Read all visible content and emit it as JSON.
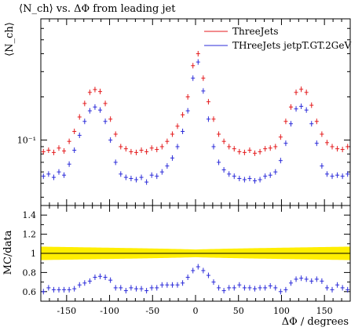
{
  "chart_data": [
    {
      "type": "scatter",
      "title": "⟨N_ch⟩ vs. ΔΦ from leading jet",
      "ylabel": "⟨N_ch⟩",
      "yscale": "log",
      "ylim": [
        0.035,
        0.7
      ],
      "xlim": [
        -180,
        180
      ],
      "ytick_label": "10⁻¹",
      "legend_position": "top-right",
      "series": [
        {
          "name": "ThreeJets",
          "color": "#e41a1c",
          "x": [
            -177,
            -171,
            -165,
            -159,
            -153,
            -147,
            -141,
            -135,
            -129,
            -123,
            -117,
            -111,
            -105,
            -99,
            -93,
            -87,
            -81,
            -75,
            -69,
            -63,
            -57,
            -51,
            -45,
            -39,
            -33,
            -27,
            -21,
            -15,
            -9,
            -3,
            3,
            9,
            15,
            21,
            27,
            33,
            39,
            45,
            51,
            57,
            63,
            69,
            75,
            81,
            87,
            93,
            99,
            105,
            111,
            117,
            123,
            129,
            135,
            141,
            147,
            153,
            159,
            165,
            171,
            177
          ],
          "y": [
            0.083,
            0.085,
            0.082,
            0.088,
            0.084,
            0.098,
            0.115,
            0.145,
            0.18,
            0.215,
            0.225,
            0.218,
            0.18,
            0.14,
            0.11,
            0.09,
            0.087,
            0.083,
            0.082,
            0.085,
            0.083,
            0.088,
            0.086,
            0.09,
            0.098,
            0.11,
            0.125,
            0.15,
            0.2,
            0.33,
            0.4,
            0.27,
            0.185,
            0.14,
            0.11,
            0.098,
            0.09,
            0.087,
            0.083,
            0.082,
            0.085,
            0.081,
            0.083,
            0.087,
            0.088,
            0.09,
            0.105,
            0.135,
            0.17,
            0.215,
            0.226,
            0.215,
            0.175,
            0.135,
            0.11,
            0.096,
            0.09,
            0.087,
            0.086,
            0.09
          ]
        },
        {
          "name": "THreeJets jetpT.GT.2GeV",
          "color": "#2b2bd9",
          "x": [
            -177,
            -171,
            -165,
            -159,
            -153,
            -147,
            -141,
            -135,
            -129,
            -123,
            -117,
            -111,
            -105,
            -99,
            -93,
            -87,
            -81,
            -75,
            -69,
            -63,
            -57,
            -51,
            -45,
            -39,
            -33,
            -27,
            -21,
            -15,
            -9,
            -3,
            3,
            9,
            15,
            21,
            27,
            33,
            39,
            45,
            51,
            57,
            63,
            69,
            75,
            81,
            87,
            93,
            99,
            105,
            111,
            117,
            123,
            129,
            135,
            141,
            147,
            153,
            159,
            165,
            171,
            177
          ],
          "y": [
            0.056,
            0.058,
            0.055,
            0.06,
            0.057,
            0.068,
            0.085,
            0.108,
            0.135,
            0.16,
            0.17,
            0.162,
            0.135,
            0.1,
            0.07,
            0.058,
            0.055,
            0.054,
            0.053,
            0.055,
            0.051,
            0.057,
            0.056,
            0.06,
            0.066,
            0.075,
            0.09,
            0.115,
            0.16,
            0.27,
            0.35,
            0.22,
            0.14,
            0.09,
            0.07,
            0.062,
            0.058,
            0.056,
            0.054,
            0.053,
            0.054,
            0.052,
            0.053,
            0.056,
            0.057,
            0.06,
            0.072,
            0.095,
            0.13,
            0.165,
            0.172,
            0.162,
            0.13,
            0.095,
            0.066,
            0.058,
            0.056,
            0.057,
            0.056,
            0.058
          ]
        }
      ]
    },
    {
      "type": "scatter",
      "ylabel": "MC/data",
      "xlabel": "ΔΦ / degrees",
      "xlim": [
        -180,
        180
      ],
      "ylim": [
        0.5,
        1.5
      ],
      "xticks": [
        -150,
        -100,
        -50,
        0,
        50,
        100,
        150
      ],
      "yticks": [
        0.6,
        0.8,
        1.0,
        1.2,
        1.4
      ],
      "xtick_labels": [
        "-150",
        "-100",
        "-50",
        "0",
        "50",
        "100",
        "150"
      ],
      "ytick_labels": [
        "0.6",
        "0.8",
        "1",
        "1.2",
        "1.4"
      ],
      "band": {
        "center": 1.0,
        "halfwidth_edge": 0.07,
        "halfwidth_center": 0.04,
        "color": "#ffee00"
      },
      "series": [
        {
          "name": "THreeJets jetpT.GT.2GeV",
          "color": "#2b2bd9",
          "x": [
            -177,
            -171,
            -165,
            -159,
            -153,
            -147,
            -141,
            -135,
            -129,
            -123,
            -117,
            -111,
            -105,
            -99,
            -93,
            -87,
            -81,
            -75,
            -69,
            -63,
            -57,
            -51,
            -45,
            -39,
            -33,
            -27,
            -21,
            -15,
            -9,
            -3,
            3,
            9,
            15,
            21,
            27,
            33,
            39,
            45,
            51,
            57,
            63,
            69,
            75,
            81,
            87,
            93,
            99,
            105,
            111,
            117,
            123,
            129,
            135,
            141,
            147,
            153,
            159,
            165,
            171,
            177
          ],
          "y": [
            0.6,
            0.64,
            0.62,
            0.62,
            0.62,
            0.62,
            0.63,
            0.67,
            0.69,
            0.71,
            0.75,
            0.76,
            0.75,
            0.72,
            0.64,
            0.64,
            0.61,
            0.64,
            0.63,
            0.63,
            0.61,
            0.64,
            0.64,
            0.67,
            0.67,
            0.67,
            0.67,
            0.69,
            0.75,
            0.82,
            0.86,
            0.82,
            0.77,
            0.7,
            0.64,
            0.61,
            0.64,
            0.64,
            0.67,
            0.64,
            0.64,
            0.63,
            0.64,
            0.64,
            0.66,
            0.64,
            0.6,
            0.62,
            0.69,
            0.73,
            0.74,
            0.73,
            0.71,
            0.73,
            0.71,
            0.64,
            0.62,
            0.67,
            0.64,
            0.62
          ]
        }
      ]
    }
  ]
}
